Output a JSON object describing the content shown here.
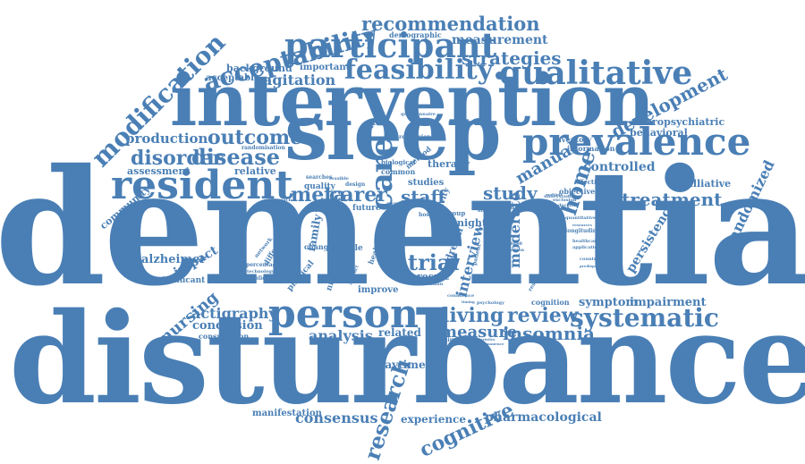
{
  "colors": {
    "word": "#4a7fb5",
    "background": "#ffffff"
  },
  "words": [
    {
      "text": "dementia"
    },
    {
      "text": "disturbance"
    },
    {
      "text": "intervention"
    },
    {
      "text": "sleep"
    },
    {
      "text": "prevalence"
    },
    {
      "text": "resident"
    },
    {
      "text": "participant"
    },
    {
      "text": "feasibility"
    },
    {
      "text": "qualitative"
    },
    {
      "text": "acceptability"
    },
    {
      "text": "modification"
    },
    {
      "text": "recommendation"
    },
    {
      "text": "strategies"
    },
    {
      "text": "measurement"
    },
    {
      "text": "development"
    },
    {
      "text": "person"
    },
    {
      "text": "systematic"
    },
    {
      "text": "living"
    },
    {
      "text": "review"
    },
    {
      "text": "insomnia"
    },
    {
      "text": "measure"
    },
    {
      "text": "trial"
    },
    {
      "text": "outcome"
    },
    {
      "text": "disease"
    },
    {
      "text": "disorder"
    },
    {
      "text": "production"
    },
    {
      "text": "agitation"
    },
    {
      "text": "care"
    },
    {
      "text": "home"
    },
    {
      "text": "staff"
    },
    {
      "text": "carer"
    },
    {
      "text": "meta"
    },
    {
      "text": "study"
    },
    {
      "text": "manual"
    },
    {
      "text": "treatment"
    },
    {
      "text": "controlled"
    },
    {
      "text": "randomized"
    },
    {
      "text": "palliative"
    },
    {
      "text": "persistence"
    },
    {
      "text": "neuropsychiatric"
    },
    {
      "text": "behavioral"
    },
    {
      "text": "actigraphy"
    },
    {
      "text": "nursing"
    },
    {
      "text": "conclusion"
    },
    {
      "text": "consultation"
    },
    {
      "text": "analysis"
    },
    {
      "text": "related"
    },
    {
      "text": "daytime"
    },
    {
      "text": "consensus"
    },
    {
      "text": "manifestation"
    },
    {
      "text": "research"
    },
    {
      "text": "cognitive"
    },
    {
      "text": "experience"
    },
    {
      "text": "pharmacological"
    },
    {
      "text": "symptom"
    },
    {
      "text": "impairment"
    },
    {
      "text": "alzheimer"
    },
    {
      "text": "impact"
    },
    {
      "text": "significant"
    },
    {
      "text": "community"
    },
    {
      "text": "assessment"
    },
    {
      "text": "relative"
    },
    {
      "text": "background"
    },
    {
      "text": "acceptable"
    },
    {
      "text": "important"
    },
    {
      "text": "demographic"
    },
    {
      "text": "moderate"
    },
    {
      "text": "interview"
    },
    {
      "text": "therapy"
    },
    {
      "text": "core"
    },
    {
      "text": "night"
    },
    {
      "text": "dream"
    },
    {
      "text": "result"
    },
    {
      "text": "improve"
    },
    {
      "text": "eligible"
    },
    {
      "text": "family"
    },
    {
      "text": "quality"
    },
    {
      "text": "future"
    },
    {
      "text": "studies"
    },
    {
      "text": "common"
    },
    {
      "text": "biological"
    },
    {
      "text": "cognition"
    },
    {
      "text": "inventory"
    },
    {
      "text": "information"
    },
    {
      "text": "objective"
    },
    {
      "text": "effectiveness"
    },
    {
      "text": "randomisation"
    },
    {
      "text": "session"
    },
    {
      "text": "regression"
    },
    {
      "text": "questionnaire"
    },
    {
      "text": "group"
    },
    {
      "text": "minimum"
    },
    {
      "text": "percentage"
    },
    {
      "text": "technology"
    },
    {
      "text": "publication"
    },
    {
      "text": "physical"
    },
    {
      "text": "nighttime"
    },
    {
      "text": "difference"
    },
    {
      "text": "change"
    },
    {
      "text": "understanding"
    },
    {
      "text": "longitudinal"
    },
    {
      "text": "quantitative"
    },
    {
      "text": "healthcare"
    },
    {
      "text": "application"
    },
    {
      "text": "health"
    },
    {
      "text": "human"
    },
    {
      "text": "psychology"
    },
    {
      "text": "method"
    },
    {
      "text": "activity"
    },
    {
      "text": "network"
    },
    {
      "text": "exclusion"
    },
    {
      "text": "reduction"
    },
    {
      "text": "cause"
    },
    {
      "text": "abstract"
    },
    {
      "text": "database"
    },
    {
      "text": "proportion"
    },
    {
      "text": "researcher"
    },
    {
      "text": "confidence"
    },
    {
      "text": "timing"
    },
    {
      "text": "simulated"
    },
    {
      "text": "characteristics"
    },
    {
      "text": "permanence"
    },
    {
      "text": "resources"
    },
    {
      "text": "graduate"
    },
    {
      "text": "excluded"
    },
    {
      "text": "approach"
    },
    {
      "text": "searches"
    },
    {
      "text": "feasible"
    },
    {
      "text": "design"
    },
    {
      "text": "hospital"
    },
    {
      "text": "multiple"
    },
    {
      "text": "benefit"
    },
    {
      "text": "life"
    },
    {
      "text": "light"
    },
    {
      "text": "patient"
    },
    {
      "text": "disciplines"
    },
    {
      "text": "country"
    },
    {
      "text": "predisposition"
    }
  ]
}
